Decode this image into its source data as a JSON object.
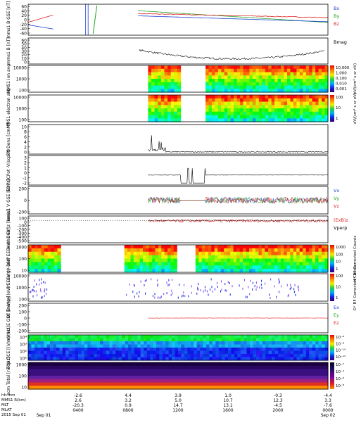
{
  "figure": {
    "footer": {
      "row_labels": [
        "hh:mm",
        "MMS1 R(km)",
        "MLT",
        "MLAT",
        "2015 Sep 01"
      ],
      "date_end": "Sep 02"
    },
    "x_axis": {
      "ticks": [
        {
          "t": "0400",
          "r": "-2.6",
          "m": "2.6",
          "l": "-20.3"
        },
        {
          "t": "0800",
          "r": "4.4",
          "m": "3.2",
          "l": "0.9"
        },
        {
          "t": "1200",
          "r": "3.9",
          "m": "5.0",
          "l": "14.7"
        },
        {
          "t": "1600",
          "r": "1.0",
          "m": "10.7",
          "l": "13.1"
        },
        {
          "t": "2000",
          "r": "-0.3",
          "m": "12.3",
          "l": "-4.5"
        },
        {
          "t": "0000",
          "r": "-4.4",
          "m": "3.3",
          "l": "-7.6"
        }
      ]
    }
  },
  "chart_data": [
    {
      "id": "b-gse",
      "type": "line",
      "ylabel": "mms1 B GSE [nT]",
      "ylim": [
        -60,
        60
      ],
      "yticks": [
        "60",
        "40",
        "20",
        "0",
        "-20",
        "-40",
        "-60"
      ],
      "series": [
        {
          "name": "Bx",
          "color": "#1f3fd0"
        },
        {
          "name": "By",
          "color": "#1fa51f"
        },
        {
          "name": "Bz",
          "color": "#e02020"
        }
      ]
    },
    {
      "id": "bmag",
      "type": "line",
      "ylabel": "mms1 B [nT]",
      "ylim": [
        0,
        60
      ],
      "yticks": [
        "60",
        "50",
        "40",
        "30",
        "20",
        "10",
        "0"
      ],
      "series": [
        {
          "name": "Bmag",
          "color": "#000000"
        }
      ]
    },
    {
      "id": "ion-spec",
      "type": "heatmap",
      "ylabel": "MMS1 ion avg",
      "yticks": [
        "10000",
        "1000",
        "100"
      ],
      "colorbar": {
        "ticks": [
          "10,000",
          "1,000",
          "0,100",
          "0,010",
          "0,001"
        ],
        "label": "eV/(cm² s sr eV)"
      }
    },
    {
      "id": "ele-spec",
      "type": "heatmap",
      "ylabel": "MMS1 electron avg",
      "yticks": [
        "10000",
        "1000",
        "100"
      ],
      "colorbar": {
        "ticks": [
          "100",
          "10",
          "1"
        ],
        "label": "eV/(cm² s sr eV)"
      }
    },
    {
      "id": "density",
      "type": "line",
      "ylabel": "FPI Dens [cm⁻³]",
      "ylim": [
        0,
        10
      ],
      "yticks": [
        "10",
        "8",
        "6",
        "4",
        "2",
        "0"
      ]
    },
    {
      "id": "edp",
      "type": "line",
      "ylabel": "EDP SCPot -V(scpot)",
      "ylim": [
        -2,
        4
      ],
      "yticks": [
        "3",
        "2",
        "1",
        "0",
        "-1",
        "-2"
      ]
    },
    {
      "id": "vgse",
      "type": "line",
      "ylabel": "mms1 V GSE [km/s]",
      "ylim": [
        -300,
        300
      ],
      "yticks": [
        "200",
        "0",
        "-200"
      ],
      "series": [
        {
          "name": "Vx",
          "color": "#1f3fd0"
        },
        {
          "name": "Vy",
          "color": "#1fa51f"
        },
        {
          "name": "Vz",
          "color": "#e02020"
        }
      ]
    },
    {
      "id": "expar",
      "type": "line",
      "ylabel": "mms1 Ex||z [km/s]",
      "ylim": [
        -500,
        100
      ],
      "yticks": [
        "100",
        "0",
        "-100",
        "-200",
        "-300",
        "-400",
        "-500"
      ],
      "series": [
        {
          "name": "(ExB)z",
          "color": "#e02020"
        },
        {
          "name": "Vperp",
          "color": "#000000"
        }
      ]
    },
    {
      "id": "hplus",
      "type": "heatmap",
      "ylabel": "H⁺ Energy (eV) EEEV 0°-360°",
      "yticks": [
        "1000",
        "100",
        "10"
      ],
      "colorbar": {
        "ticks": [
          "1000",
          "100",
          "10",
          "1"
        ],
        "label": "H⁺ RF Corrected Counts"
      }
    },
    {
      "id": "oplus",
      "type": "heatmap",
      "ylabel": "O⁺ Energy (eV) EEEV 0°-360°",
      "yticks": [
        "10000",
        "1000",
        "100"
      ],
      "colorbar": {
        "ticks": [
          "100",
          "10",
          "1"
        ],
        "label": "O⁺ RF Corrected Counts"
      }
    },
    {
      "id": "efield",
      "type": "line",
      "ylabel": "mms1 E GSE [mV/m]",
      "ylim": [
        -200,
        200
      ],
      "yticks": [
        "200",
        "100",
        "0",
        "-100",
        "-200"
      ],
      "series": [
        {
          "name": "Ex",
          "color": "#1f3fd0"
        },
        {
          "name": "Ey",
          "color": "#1fa51f"
        },
        {
          "name": "Ez",
          "color": "#e02020"
        }
      ]
    },
    {
      "id": "edp-spec",
      "type": "heatmap",
      "ylabel": "edp DCE [(V/m)²/Hz]",
      "yticks": [
        "10⁴",
        "10³",
        "10²",
        "10¹"
      ],
      "colorbar": {
        "ticks": [
          "10⁻⁶",
          "10⁻⁸",
          "10⁻¹⁰",
          "10⁻¹²"
        ],
        "label": ""
      }
    },
    {
      "id": "scm-spec",
      "type": "heatmap",
      "ylabel": "scm Total [nT²/Hz]",
      "yticks": [
        "1000",
        "100",
        "10"
      ],
      "colorbar": {
        "ticks": [
          "10⁻²",
          "10⁻⁴",
          "10⁻⁶",
          "10⁻⁸"
        ],
        "label": ""
      }
    }
  ]
}
